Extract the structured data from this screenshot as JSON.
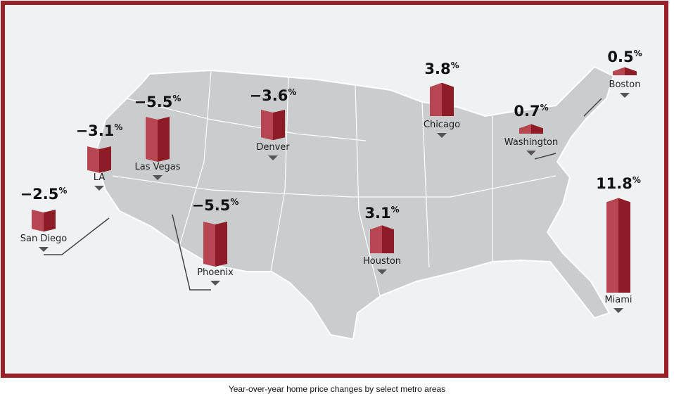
{
  "metros": [
    {
      "name": "San Diego",
      "value": -2.5,
      "label": "−2.5"
    },
    {
      "name": "LA",
      "value": -3.1,
      "label": "−3.1"
    },
    {
      "name": "Las Vegas",
      "value": -5.5,
      "label": "−5.5"
    },
    {
      "name": "Denver",
      "value": -3.6,
      "label": "−3.6"
    },
    {
      "name": "Phoenix",
      "value": -5.5,
      "label": "−5.5"
    },
    {
      "name": "Houston",
      "value": 3.1,
      "label": "3.1"
    },
    {
      "name": "Chicago",
      "value": 3.8,
      "label": "3.8"
    },
    {
      "name": "Washington",
      "value": 0.7,
      "label": "0.7"
    },
    {
      "name": "Boston",
      "value": 0.5,
      "label": "0.5"
    },
    {
      "name": "Miami",
      "value": 11.8,
      "label": "11.8"
    }
  ],
  "unit": "%",
  "caption": "Year-over-year home price changes by select metro areas"
}
